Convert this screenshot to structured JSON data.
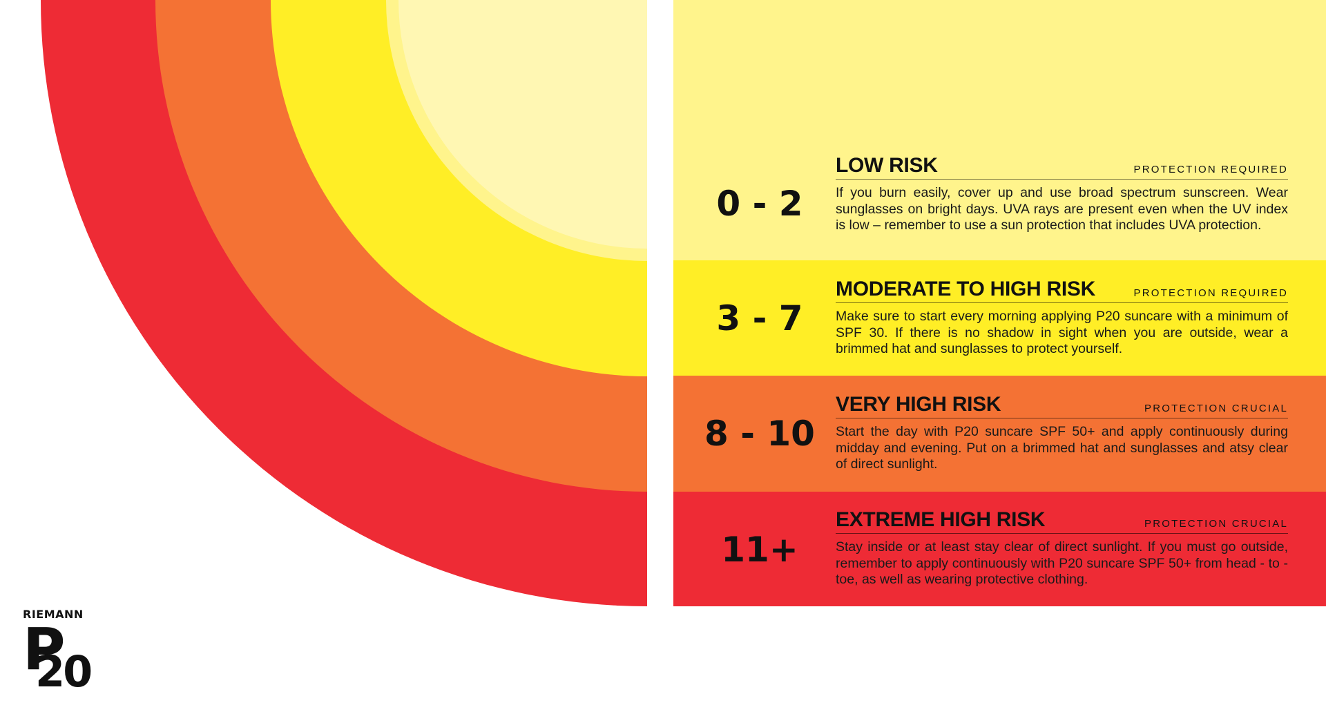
{
  "colors": {
    "extreme": "#EE2B35",
    "very_high": "#F47234",
    "moderate": "#FFEE26",
    "low": "#FFF48C",
    "core": "#FFF7B3"
  },
  "levels": [
    {
      "range": "0 - 2",
      "title": "LOW RISK",
      "tag": "PROTECTION REQUIRED",
      "description": "If you burn easily, cover up and use broad spectrum sunscreen. Wear sunglasses on bright days. UVA rays are present even when the UV index is low – remember to use a sun protection that includes UVA protection."
    },
    {
      "range": "3 - 7",
      "title": "MODERATE TO HIGH RISK",
      "tag": "PROTECTION REQUIRED",
      "description": "Make sure to start every morning applying P20 suncare with a minimum of SPF 30. If there is no shadow in sight when you are outside, wear a brimmed hat and sunglasses to protect yourself."
    },
    {
      "range": "8 - 10",
      "title": "VERY HIGH RISK",
      "tag": "PROTECTION CRUCIAL",
      "description": "Start the day with P20 suncare SPF 50+ and apply continuously during midday and evening. Put on a brimmed hat and sunglasses and atsy clear of direct sunlight."
    },
    {
      "range": "11+",
      "title": "EXTREME HIGH RISK",
      "tag": "PROTECTION CRUCIAL",
      "description": "Stay inside or at least stay clear of direct sunlight. If you must go outside, remember to apply continuously with P20 suncare SPF 50+ from head - to - toe, as well as wearing protective clothing."
    }
  ],
  "brand": {
    "top": "RIEMANN",
    "main": "P",
    "sub": "20"
  }
}
